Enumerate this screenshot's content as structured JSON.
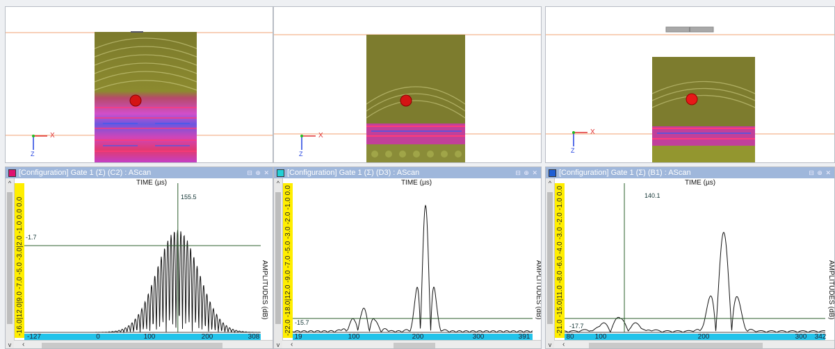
{
  "views": [
    {
      "axis_x_label": "X",
      "axis_z_label": "Z"
    },
    {
      "axis_x_label": "X",
      "axis_z_label": "Z"
    },
    {
      "axis_x_label": "X",
      "axis_z_label": "Z"
    }
  ],
  "panels": [
    {
      "title": "[Configuration] Gate 1 (Σ) (C2) : AScan",
      "swatch_color": "#e0116f",
      "window_buttons": "⊟ ⊕ ✕",
      "time_label": "TIME (µs)",
      "amplitude_label": "AMPLITUDES (dB)",
      "y_scale_text": "-16.0|12.0|9.0 -7.0 -5.0 -3.0|2.0 -1.0 0.0 0.0",
      "cursor_time": "155.5",
      "gate_level": "-1.7",
      "x_ticks": [
        "-127",
        "0",
        "100",
        "200",
        "308"
      ],
      "chart_data": {
        "type": "line",
        "x_range": [
          -127,
          308
        ],
        "signal": "tapered burst",
        "burst_center": 155,
        "burst_width": 120,
        "peak_amplitude": 0.72,
        "cursor_x": 155.5,
        "gate_level_db": -1.7
      }
    },
    {
      "title": "[Configuration] Gate 1 (Σ) (D3) : AScan",
      "swatch_color": "#22d0d6",
      "window_buttons": "⊟ ⊕ ✕",
      "time_label": "TIME (µs)",
      "amplitude_label": "AMPLITUDES (dB)",
      "y_scale_text": "-22.0 -18.0|12.0 -9.0 -7.0 -5.0 -3.0 -2.0 -1.0 0.0",
      "cursor_time": "",
      "gate_level": "-15.7",
      "x_ticks": [
        "19",
        "100",
        "200",
        "300",
        "391"
      ],
      "chart_data": {
        "type": "line",
        "x_range": [
          19,
          391
        ],
        "signal": "two echoes",
        "echoes": [
          {
            "center": 129,
            "amplitude": 0.16
          },
          {
            "center": 225,
            "amplitude": 0.88
          }
        ],
        "gate_level_db": -15.7
      }
    },
    {
      "title": "[Configuration] Gate 1 (Σ) (B1) : AScan",
      "swatch_color": "#1f5fd4",
      "window_buttons": "⊟ ⊕ ✕",
      "time_label": "TIME (µs)",
      "amplitude_label": "AMPLITUDES (dB)",
      "y_scale_text": "-21.0 -15.0|11.0 -8.0 -6.0 -4.0 -3.0 -2.0 -1.0 0.0",
      "cursor_time": "140.1",
      "gate_level": "-17.7",
      "x_ticks": [
        "80",
        "100",
        "200",
        "300",
        "342"
      ],
      "chart_data": {
        "type": "line",
        "x_range": [
          80,
          342
        ],
        "signal": "two echoes",
        "echoes": [
          {
            "center": 135,
            "amplitude": 0.1
          },
          {
            "center": 240,
            "amplitude": 0.7
          }
        ],
        "cursor_x": 140.1,
        "gate_level_db": -17.7
      }
    }
  ]
}
